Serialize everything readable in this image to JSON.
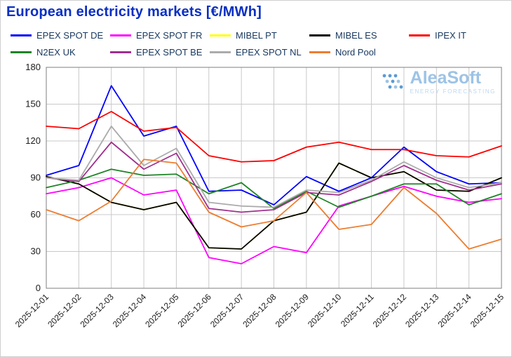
{
  "title": "European electricity markets [€/MWh]",
  "colors": {
    "title": "#0A2FC4",
    "grid": "#c9c9c9",
    "plot_border": "#7f7f7f",
    "legend_text": "#17375E",
    "watermark_blue": "#9DC3E6"
  },
  "watermark": {
    "name": "AleaSoft",
    "tagline": "ENERGY FORECASTING"
  },
  "legend": {
    "rows": [
      [
        0,
        1,
        2,
        3,
        4
      ],
      [
        5,
        6,
        7,
        8
      ]
    ]
  },
  "chart_data": {
    "type": "line",
    "title": "European electricity markets [€/MWh]",
    "xlabel": "",
    "ylabel": "",
    "ylim": [
      0,
      180
    ],
    "yticks": [
      0,
      30,
      60,
      90,
      120,
      150,
      180
    ],
    "grid": true,
    "legend_position": "top",
    "x": [
      "2025-12-01",
      "2025-12-02",
      "2025-12-03",
      "2025-12-04",
      "2025-12-05",
      "2025-12-06",
      "2025-12-07",
      "2025-12-08",
      "2025-12-09",
      "2025-12-10",
      "2025-12-11",
      "2025-12-12",
      "2025-12-13",
      "2025-12-14",
      "2025-12-15"
    ],
    "series": [
      {
        "name": "EPEX SPOT DE",
        "color": "#0000FE",
        "values": [
          92,
          100,
          165,
          124,
          132,
          79,
          80,
          68,
          91,
          79,
          90,
          115,
          95,
          85,
          86
        ]
      },
      {
        "name": "EPEX SPOT FR",
        "color": "#FF00FF",
        "values": [
          77,
          82,
          90,
          76,
          80,
          25,
          20,
          34,
          29,
          67,
          75,
          83,
          75,
          70,
          73
        ]
      },
      {
        "name": "MIBEL PT",
        "color": "#FFFF00",
        "values": [
          91,
          85,
          70,
          64,
          70,
          33,
          32,
          55,
          62,
          102,
          90,
          95,
          80,
          79,
          90
        ]
      },
      {
        "name": "MIBEL ES",
        "color": "#000000",
        "values": [
          91,
          85,
          70,
          64,
          70,
          33,
          32,
          55,
          62,
          102,
          90,
          95,
          80,
          79,
          90
        ]
      },
      {
        "name": "IPEX IT",
        "color": "#FE0000",
        "values": [
          132,
          130,
          144,
          128,
          131,
          108,
          103,
          104,
          115,
          119,
          113,
          113,
          108,
          107,
          116
        ]
      },
      {
        "name": "N2EX UK",
        "color": "#1E8426",
        "values": [
          82,
          88,
          97,
          92,
          93,
          77,
          86,
          65,
          79,
          66,
          75,
          85,
          85,
          68,
          77
        ]
      },
      {
        "name": "EPEX SPOT BE",
        "color": "#A0308F",
        "values": [
          90,
          87,
          119,
          97,
          110,
          65,
          62,
          64,
          78,
          76,
          87,
          100,
          88,
          80,
          85
        ]
      },
      {
        "name": "EPEX SPOT NL",
        "color": "#ABABAB",
        "values": [
          90,
          88,
          132,
          100,
          114,
          70,
          67,
          66,
          80,
          78,
          88,
          103,
          90,
          82,
          86
        ]
      },
      {
        "name": "Nord Pool",
        "color": "#ED7D31",
        "values": [
          64,
          55,
          71,
          105,
          102,
          62,
          50,
          55,
          78,
          48,
          52,
          82,
          61,
          32,
          40
        ]
      }
    ]
  }
}
